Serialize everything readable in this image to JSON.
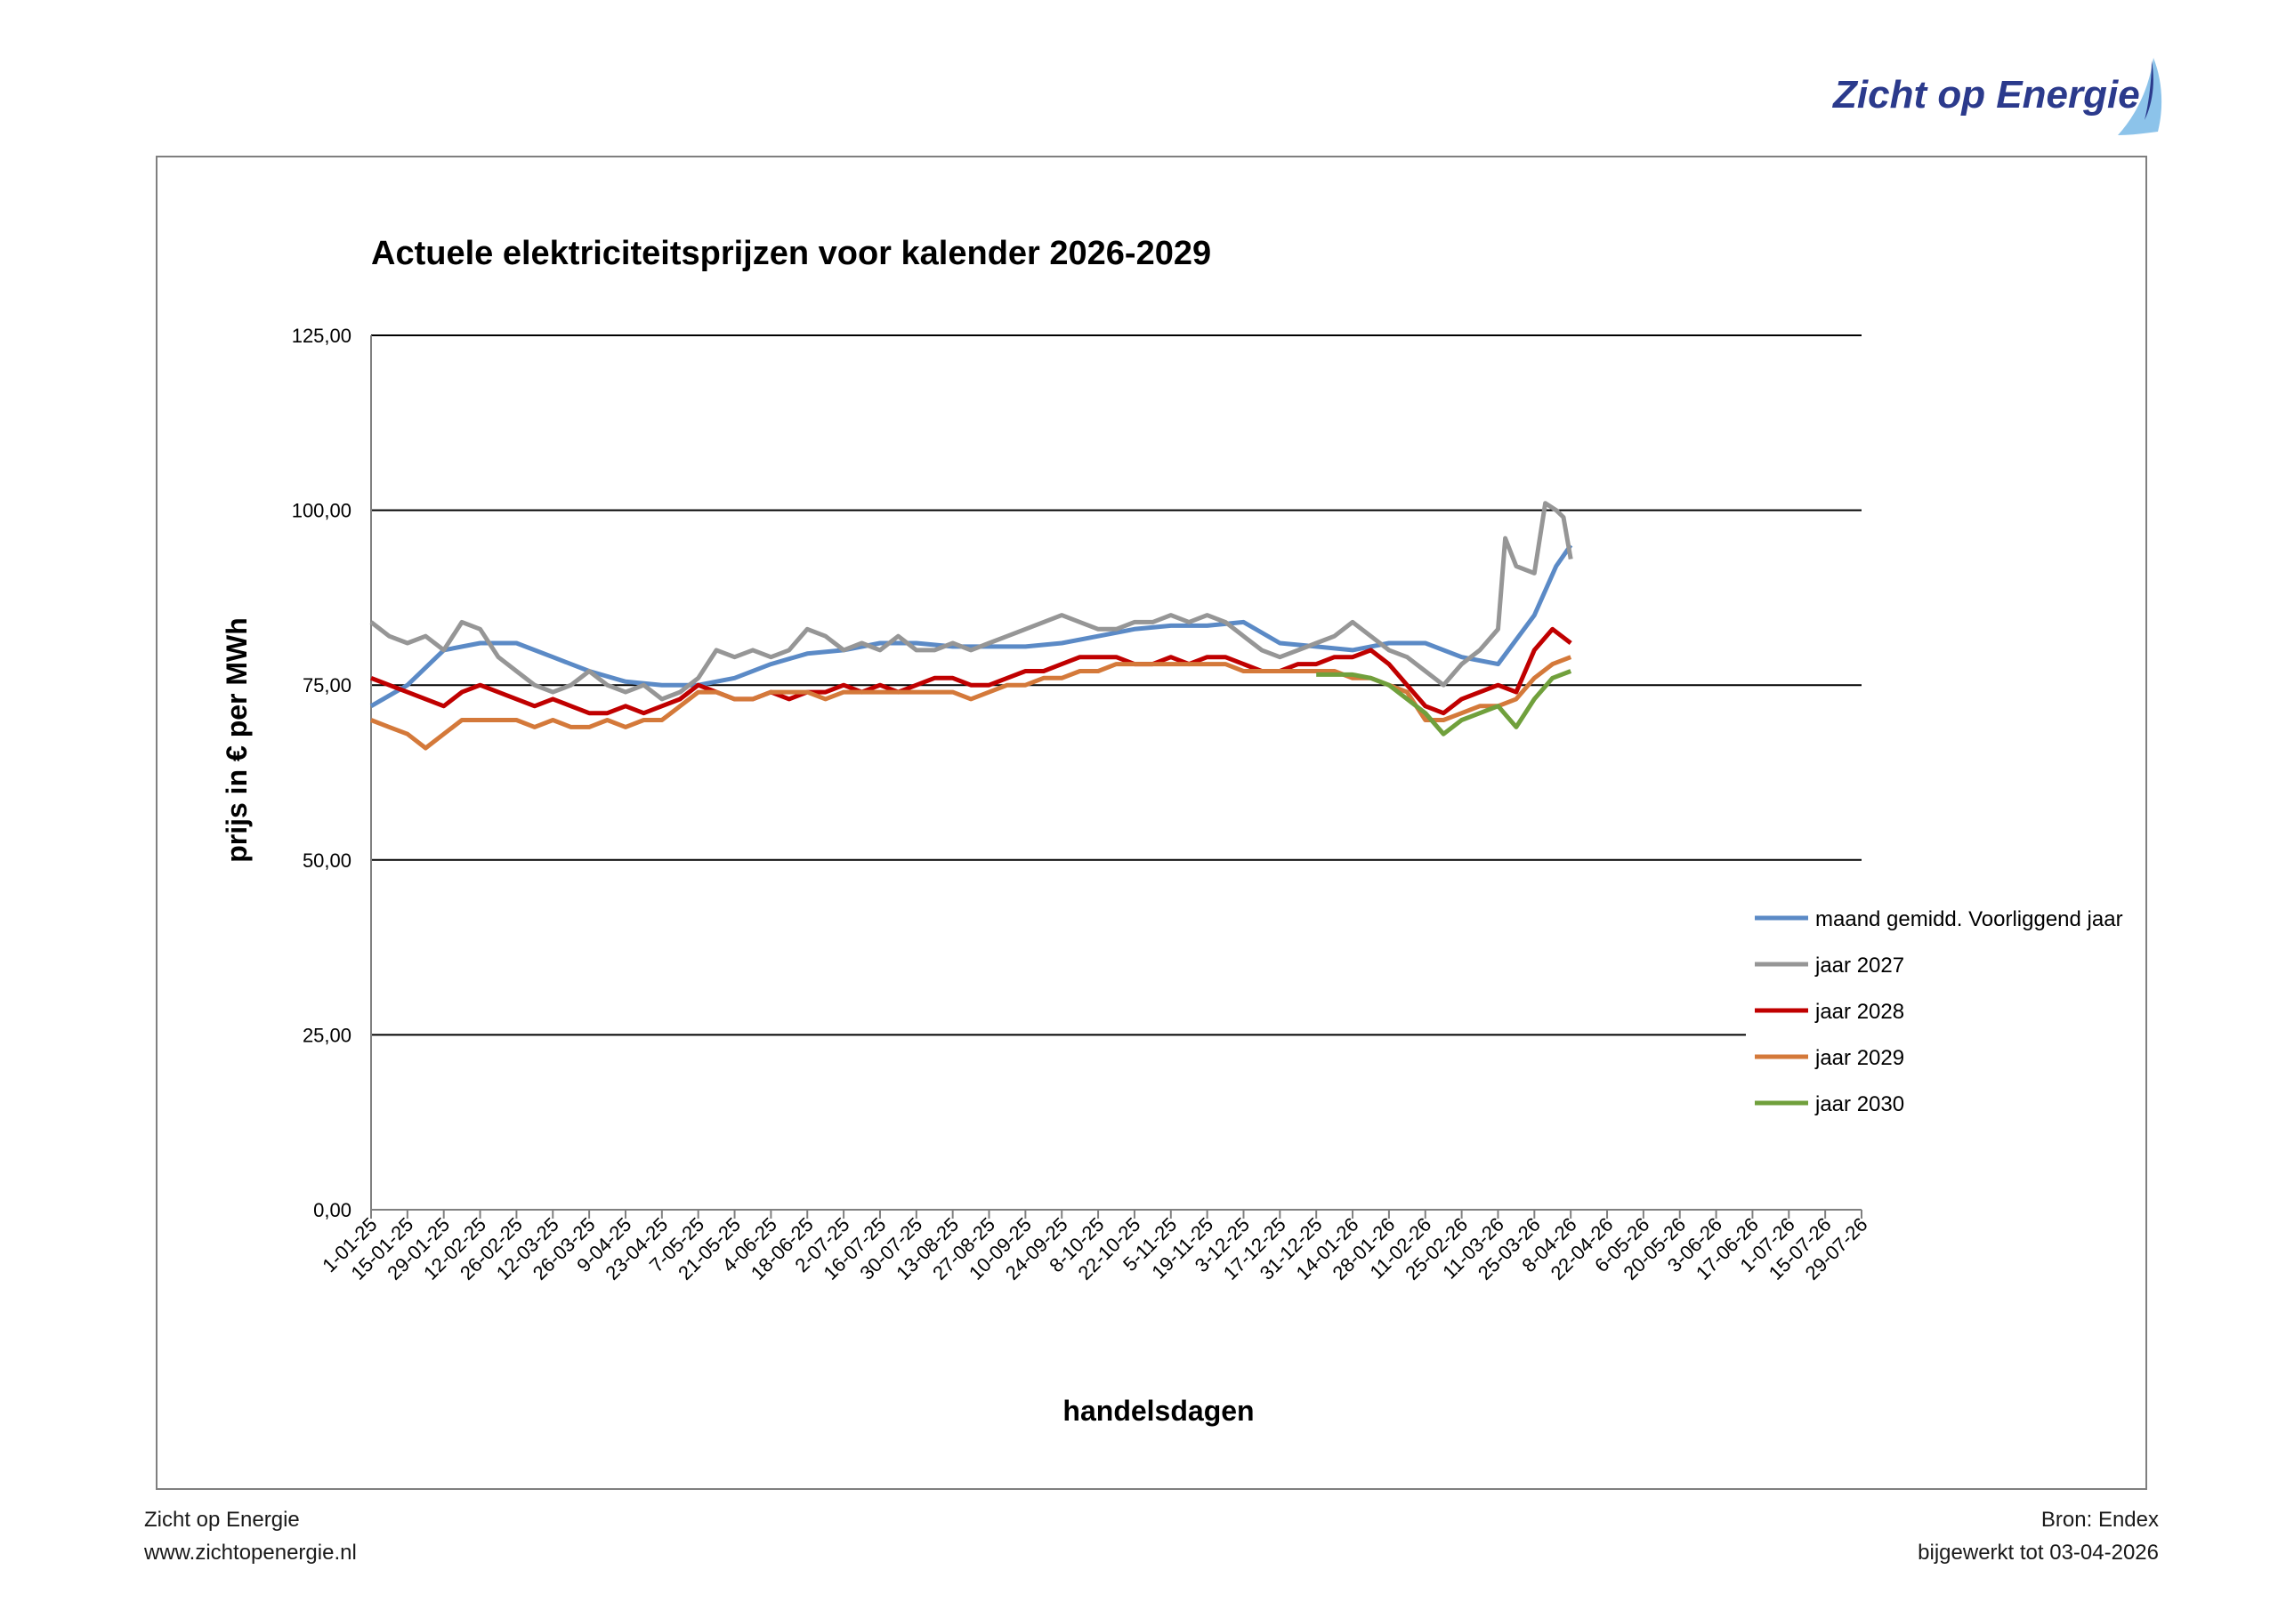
{
  "logo": {
    "text": "Zicht op Energie",
    "color": "#2b3a8c",
    "accent": "#8cc3ea"
  },
  "footer": {
    "left_line1": "Zicht op Energie",
    "left_line2": "www.zichtopenergie.nl",
    "right_line1": "Bron: Endex",
    "right_line2": "bijgewerkt tot 03-04-2026"
  },
  "chart_data": {
    "type": "line",
    "title": "Actuele elektriciteitsprijzen voor kalender 2026-2029",
    "xlabel": "handelsdagen",
    "ylabel": "prijs in € per MWh",
    "ylim": [
      0,
      125
    ],
    "yticks": [
      0,
      25,
      50,
      75,
      100,
      125
    ],
    "ytick_labels": [
      "0,00",
      "25,00",
      "50,00",
      "75,00",
      "100,00",
      "125,00"
    ],
    "grid": "horizontal",
    "legend_position": "right",
    "x_tick_labels": [
      "1-01-25",
      "15-01-25",
      "29-01-25",
      "12-02-25",
      "26-02-25",
      "12-03-25",
      "26-03-25",
      "9-04-25",
      "23-04-25",
      "7-05-25",
      "21-05-25",
      "4-06-25",
      "18-06-25",
      "2-07-25",
      "16-07-25",
      "30-07-25",
      "13-08-25",
      "27-08-25",
      "10-09-25",
      "24-09-25",
      "8-10-25",
      "22-10-25",
      "5-11-25",
      "19-11-25",
      "3-12-25",
      "17-12-25",
      "31-12-25",
      "14-01-26",
      "28-01-26",
      "11-02-26",
      "25-02-26",
      "11-03-26",
      "25-03-26",
      "8-04-26",
      "22-04-26",
      "6-05-26",
      "20-05-26",
      "3-06-26",
      "17-06-26",
      "1-07-26",
      "15-07-26",
      "29-07-26"
    ],
    "x_index_range": [
      0,
      41
    ],
    "series": [
      {
        "name": "maand gemidd. Voorliggend jaar",
        "color": "#5b8ac6",
        "x": [
          0,
          1,
          2,
          3,
          4,
          5,
          6,
          7,
          8,
          9,
          10,
          11,
          12,
          13,
          14,
          15,
          16,
          17,
          18,
          19,
          20,
          21,
          22,
          23,
          24,
          25,
          26,
          27,
          28,
          29,
          30,
          31,
          32,
          32.6,
          33
        ],
        "y": [
          72,
          75,
          80,
          81,
          81,
          79,
          77,
          75.5,
          75,
          75,
          76,
          78,
          79.5,
          80,
          81,
          81,
          80.5,
          80.5,
          80.5,
          81,
          82,
          83,
          83.5,
          83.5,
          84,
          81,
          80.5,
          80,
          81,
          81,
          79,
          78,
          85,
          92,
          95
        ]
      },
      {
        "name": "jaar 2027",
        "color": "#969696",
        "x": [
          0,
          0.5,
          1,
          1.5,
          2,
          2.5,
          3,
          3.5,
          4,
          4.5,
          5,
          5.5,
          6,
          6.5,
          7,
          7.5,
          8,
          8.5,
          9,
          9.5,
          10,
          10.5,
          11,
          11.5,
          12,
          12.5,
          13,
          13.5,
          14,
          14.5,
          15,
          15.5,
          16,
          16.5,
          17,
          17.5,
          18,
          18.5,
          19,
          19.5,
          20,
          20.5,
          21,
          21.5,
          22,
          22.5,
          23,
          23.5,
          24,
          24.5,
          25,
          25.5,
          26,
          26.5,
          27,
          27.5,
          28,
          28.5,
          29,
          29.5,
          30,
          30.5,
          31,
          31.2,
          31.5,
          32,
          32.3,
          32.6,
          32.8,
          33
        ],
        "y": [
          84,
          82,
          81,
          82,
          80,
          84,
          83,
          79,
          77,
          75,
          74,
          75,
          77,
          75,
          74,
          75,
          73,
          74,
          76,
          80,
          79,
          80,
          79,
          80,
          83,
          82,
          80,
          81,
          80,
          82,
          80,
          80,
          81,
          80,
          81,
          82,
          83,
          84,
          85,
          84,
          83,
          83,
          84,
          84,
          85,
          84,
          85,
          84,
          82,
          80,
          79,
          80,
          81,
          82,
          84,
          82,
          80,
          79,
          77,
          75,
          78,
          80,
          83,
          96,
          92,
          91,
          101,
          100,
          99,
          93
        ]
      },
      {
        "name": "jaar 2028",
        "color": "#c00000",
        "x": [
          0,
          0.5,
          1,
          1.5,
          2,
          2.5,
          3,
          3.5,
          4,
          4.5,
          5,
          5.5,
          6,
          6.5,
          7,
          7.5,
          8,
          8.5,
          9,
          9.5,
          10,
          10.5,
          11,
          11.5,
          12,
          12.5,
          13,
          13.5,
          14,
          14.5,
          15,
          15.5,
          16,
          16.5,
          17,
          17.5,
          18,
          18.5,
          19,
          19.5,
          20,
          20.5,
          21,
          21.5,
          22,
          22.5,
          23,
          23.5,
          24,
          24.5,
          25,
          25.5,
          26,
          26.5,
          27,
          27.5,
          28,
          28.5,
          29,
          29.5,
          30,
          30.5,
          31,
          31.5,
          32,
          32.5,
          33
        ],
        "y": [
          76,
          75,
          74,
          73,
          72,
          74,
          75,
          74,
          73,
          72,
          73,
          72,
          71,
          71,
          72,
          71,
          72,
          73,
          75,
          74,
          73,
          73,
          74,
          73,
          74,
          74,
          75,
          74,
          75,
          74,
          75,
          76,
          76,
          75,
          75,
          76,
          77,
          77,
          78,
          79,
          79,
          79,
          78,
          78,
          79,
          78,
          79,
          79,
          78,
          77,
          77,
          78,
          78,
          79,
          79,
          80,
          78,
          75,
          72,
          71,
          73,
          74,
          75,
          74,
          80,
          83,
          81
        ]
      },
      {
        "name": "jaar 2029",
        "color": "#d4793a",
        "x": [
          0,
          0.5,
          1,
          1.5,
          2,
          2.5,
          3,
          3.5,
          4,
          4.5,
          5,
          5.5,
          6,
          6.5,
          7,
          7.5,
          8,
          8.5,
          9,
          9.5,
          10,
          10.5,
          11,
          11.5,
          12,
          12.5,
          13,
          13.5,
          14,
          14.5,
          15,
          15.5,
          16,
          16.5,
          17,
          17.5,
          18,
          18.5,
          19,
          19.5,
          20,
          20.5,
          21,
          21.5,
          22,
          22.5,
          23,
          23.5,
          24,
          24.5,
          25,
          25.5,
          26,
          26.5,
          27,
          27.5,
          28,
          28.5,
          29,
          29.5,
          30,
          30.5,
          31,
          31.5,
          32,
          32.5,
          33
        ],
        "y": [
          70,
          69,
          68,
          66,
          68,
          70,
          70,
          70,
          70,
          69,
          70,
          69,
          69,
          70,
          69,
          70,
          70,
          72,
          74,
          74,
          73,
          73,
          74,
          74,
          74,
          73,
          74,
          74,
          74,
          74,
          74,
          74,
          74,
          73,
          74,
          75,
          75,
          76,
          76,
          77,
          77,
          78,
          78,
          78,
          78,
          78,
          78,
          78,
          77,
          77,
          77,
          77,
          77,
          77,
          76,
          76,
          75,
          74,
          70,
          70,
          71,
          72,
          72,
          73,
          76,
          78,
          79
        ]
      },
      {
        "name": "jaar 2030",
        "color": "#70a03c",
        "x": [
          26,
          26.5,
          27,
          27.5,
          28,
          28.5,
          29,
          29.5,
          30,
          30.5,
          31,
          31.5,
          32,
          32.5,
          33
        ],
        "y": [
          76.5,
          76.5,
          76.5,
          76,
          75,
          73,
          71,
          68,
          70,
          71,
          72,
          69,
          73,
          76,
          77
        ]
      }
    ]
  }
}
